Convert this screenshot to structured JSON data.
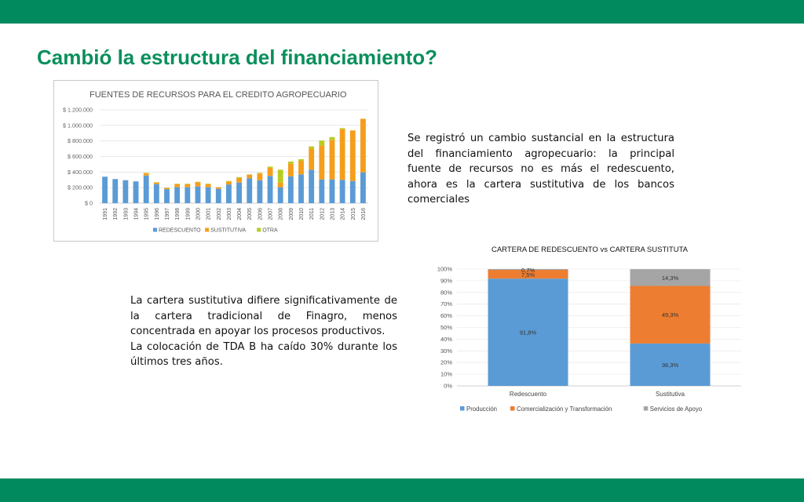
{
  "slide": {
    "title": "Cambió la estructura del financiamiento?",
    "para_right": "Se registró un cambio sustancial en la estructura del financiamiento agropecuario: la principal fuente de recursos no es más el redescuento, ahora es la cartera sustitutiva de los bancos comerciales",
    "para_left_1": "La cartera sustitutiva difiere significativamente de la cartera tradicional de Finagro, menos concentrada en apoyar los procesos productivos.",
    "para_left_2": "La colocación de TDA B ha caído 30% durante los últimos tres años.",
    "colors": {
      "band": "#008a5e",
      "title": "#0a8f5c"
    }
  },
  "chart_data": [
    {
      "type": "bar",
      "stacked": true,
      "title": "FUENTES DE RECURSOS PARA EL CREDITO AGROPECUARIO",
      "categories": [
        "1991",
        "1992",
        "1993",
        "1994",
        "1995",
        "1996",
        "1997",
        "1998",
        "1999",
        "2000",
        "2001",
        "2002",
        "2003",
        "2004",
        "2005",
        "2006",
        "2007",
        "2008",
        "2009",
        "2010",
        "2011",
        "2012",
        "2013",
        "2014",
        "2015",
        "2016"
      ],
      "series": [
        {
          "name": "REDESCUENTO",
          "color": "#5b9bd5",
          "values": [
            340000,
            310000,
            295000,
            280000,
            355000,
            245000,
            180000,
            205000,
            205000,
            215000,
            205000,
            185000,
            240000,
            265000,
            320000,
            295000,
            350000,
            205000,
            345000,
            370000,
            430000,
            305000,
            305000,
            300000,
            285000,
            395000
          ]
        },
        {
          "name": "SUSTITUTIVA",
          "color": "#f59e1b",
          "values": [
            0,
            0,
            0,
            0,
            30000,
            20000,
            15000,
            40000,
            40000,
            55000,
            40000,
            20000,
            40000,
            60000,
            45000,
            85000,
            105000,
            60000,
            160000,
            175000,
            270000,
            435000,
            505000,
            650000,
            650000,
            690000
          ]
        },
        {
          "name": "OTRA",
          "color": "#b8cc1e",
          "values": [
            0,
            0,
            0,
            0,
            5000,
            5000,
            5000,
            5000,
            5000,
            5000,
            5000,
            0,
            5000,
            10000,
            5000,
            10000,
            15000,
            165000,
            30000,
            20000,
            30000,
            65000,
            40000,
            15000,
            0,
            0
          ]
        }
      ],
      "y_ticks": [
        "$ 0",
        "$ 200.000",
        "$ 400.000",
        "$ 600.000",
        "$ 800.000",
        "$ 1.000.000",
        "$ 1.200.000"
      ],
      "ylim": [
        0,
        1200000
      ],
      "grid": true,
      "legend": "bottom"
    },
    {
      "type": "bar",
      "stacked": true,
      "percent": true,
      "title": "CARTERA DE REDESCUENTO vs CARTERA SUSTITUTA",
      "categories": [
        "Redescuento",
        "Sustitutiva"
      ],
      "series": [
        {
          "name": "Producción",
          "color": "#5b9bd5",
          "values": [
            91.8,
            36.3
          ],
          "labels": [
            "91,8%",
            "36,3%"
          ]
        },
        {
          "name": "Comercialización y Transformación",
          "color": "#ed7d31",
          "values": [
            7.5,
            49.3
          ],
          "labels": [
            "7,5%",
            "49,3%"
          ]
        },
        {
          "name": "Servicios de Apoyo",
          "color": "#a5a5a5",
          "values": [
            0.7,
            14.3
          ],
          "labels": [
            "0,7%",
            "14,3%"
          ]
        }
      ],
      "y_ticks": [
        "0%",
        "10%",
        "20%",
        "30%",
        "40%",
        "50%",
        "60%",
        "70%",
        "80%",
        "90%",
        "100%"
      ],
      "ylim": [
        0,
        100
      ],
      "legend": "bottom"
    }
  ]
}
